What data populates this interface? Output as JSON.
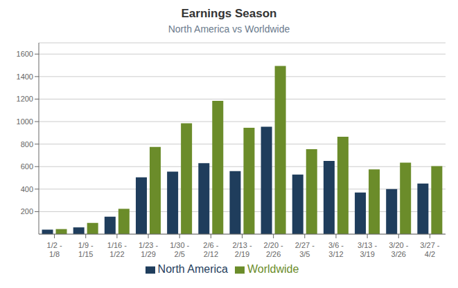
{
  "chart_data": {
    "type": "bar",
    "title": "Earnings Season",
    "subtitle": "North America vs Worldwide",
    "categories": [
      "1/2 -\n1/8",
      "1/9 -\n1/15",
      "1/16 -\n1/22",
      "1/23 -\n1/29",
      "1/30 -\n2/5",
      "2/6 -\n2/12",
      "2/13 -\n2/19",
      "2/20 -\n2/26",
      "2/27 -\n3/5",
      "3/6 -\n3/12",
      "3/13 -\n3/19",
      "3/20 -\n3/26",
      "3/27 -\n4/2"
    ],
    "series": [
      {
        "name": "North America",
        "color": "#1F3D5C",
        "values": [
          40,
          60,
          155,
          505,
          555,
          630,
          560,
          955,
          530,
          650,
          370,
          400,
          450
        ]
      },
      {
        "name": "Worldwide",
        "color": "#6B8C2A",
        "values": [
          45,
          100,
          225,
          775,
          985,
          1185,
          945,
          1495,
          755,
          865,
          575,
          635,
          605
        ]
      }
    ],
    "ylim": [
      0,
      1700
    ],
    "yticks": [
      200,
      400,
      600,
      800,
      1000,
      1200,
      1400,
      1600
    ],
    "grid": true,
    "legend": "bottom"
  }
}
